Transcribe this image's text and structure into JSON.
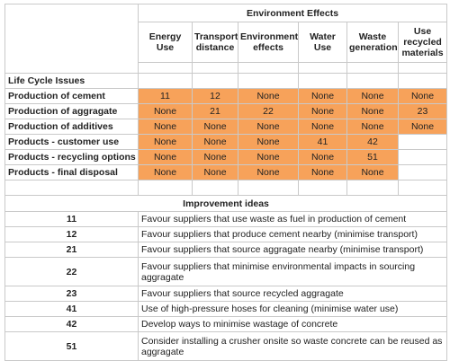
{
  "table": {
    "header_group": "Environment Effects",
    "columns": [
      "Energy Use",
      "Transport distance",
      "Environment effects",
      "Water Use",
      "Waste generation",
      "Use recycled materials"
    ],
    "lifecycle_label": "Life Cycle Issues",
    "rows": [
      {
        "issue": "Production of cement",
        "cells": [
          {
            "v": "11",
            "hl": true
          },
          {
            "v": "12",
            "hl": true
          },
          {
            "v": "None",
            "hl": true
          },
          {
            "v": "None",
            "hl": true
          },
          {
            "v": "None",
            "hl": true
          },
          {
            "v": "None",
            "hl": true
          }
        ]
      },
      {
        "issue": "Production of aggragate",
        "cells": [
          {
            "v": "None",
            "hl": true
          },
          {
            "v": "21",
            "hl": true
          },
          {
            "v": "22",
            "hl": true
          },
          {
            "v": "None",
            "hl": true
          },
          {
            "v": "None",
            "hl": true
          },
          {
            "v": "23",
            "hl": true
          }
        ]
      },
      {
        "issue": "Production of additives",
        "cells": [
          {
            "v": "None",
            "hl": true
          },
          {
            "v": "None",
            "hl": true
          },
          {
            "v": "None",
            "hl": true
          },
          {
            "v": "None",
            "hl": true
          },
          {
            "v": "None",
            "hl": true
          },
          {
            "v": "None",
            "hl": true
          }
        ]
      },
      {
        "issue": "Products - customer use",
        "cells": [
          {
            "v": "None",
            "hl": true
          },
          {
            "v": "None",
            "hl": true
          },
          {
            "v": "None",
            "hl": true
          },
          {
            "v": "41",
            "hl": true
          },
          {
            "v": "42",
            "hl": true
          },
          {
            "v": "",
            "hl": false
          }
        ]
      },
      {
        "issue": "Products - recycling options",
        "cells": [
          {
            "v": "None",
            "hl": true
          },
          {
            "v": "None",
            "hl": true
          },
          {
            "v": "None",
            "hl": true
          },
          {
            "v": "None",
            "hl": true
          },
          {
            "v": "51",
            "hl": true
          },
          {
            "v": "",
            "hl": false
          }
        ]
      },
      {
        "issue": "Products - final disposal",
        "cells": [
          {
            "v": "None",
            "hl": true
          },
          {
            "v": "None",
            "hl": true
          },
          {
            "v": "None",
            "hl": true
          },
          {
            "v": "None",
            "hl": true
          },
          {
            "v": "None",
            "hl": true
          },
          {
            "v": "",
            "hl": false
          }
        ]
      }
    ]
  },
  "improvement": {
    "title": "Improvement ideas",
    "ideas": [
      {
        "code": "11",
        "text": "Favour suppliers that use waste as fuel in production of cement"
      },
      {
        "code": "12",
        "text": "Favour suppliers that produce cement nearby (minimise transport)"
      },
      {
        "code": "21",
        "text": "Favour suppliers that source aggragate nearby (minimise transport)"
      },
      {
        "code": "22",
        "text": "Favour suppliers that minimise environmental impacts in sourcing aggragate"
      },
      {
        "code": "23",
        "text": "Favour suppliers that source recycled aggragate"
      },
      {
        "code": "41",
        "text": "Use of high-pressure hoses for cleaning (minimise water use)"
      },
      {
        "code": "42",
        "text": "Develop ways to minimise wastage of concrete"
      },
      {
        "code": "51",
        "text": "Consider installing a crusher onsite so waste concrete can be reused as aggragate"
      }
    ]
  },
  "colors": {
    "highlight": "#f7a25a",
    "border": "#c9c9c9"
  }
}
